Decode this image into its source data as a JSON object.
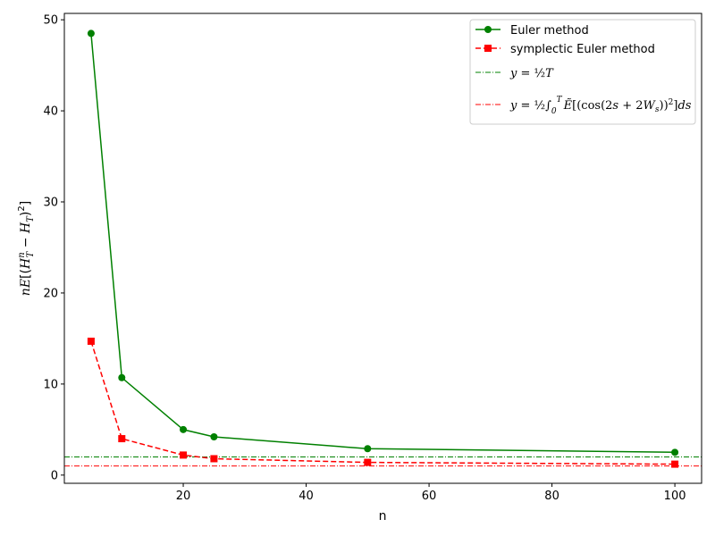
{
  "chart_data": {
    "type": "line",
    "xlabel": "n",
    "ylabel": "nE[(H_T^n − H_T)^2]",
    "xlim": [
      0.65,
      104.35
    ],
    "ylim": [
      -0.9,
      50.7
    ],
    "xticks": [
      20,
      40,
      60,
      80,
      100
    ],
    "xtick_labels": [
      "20",
      "40",
      "60",
      "80",
      "100"
    ],
    "yticks": [
      0,
      10,
      20,
      30,
      40,
      50
    ],
    "ytick_labels": [
      "0",
      "10",
      "20",
      "30",
      "40",
      "50"
    ],
    "grid": false,
    "legend_position": "top-right",
    "x": [
      5,
      10,
      20,
      25,
      50,
      100
    ],
    "series": [
      {
        "name": "Euler method",
        "values": [
          48.5,
          10.7,
          5.0,
          4.2,
          2.9,
          2.5
        ],
        "color": "#008000",
        "linestyle": "solid",
        "marker": "circle"
      },
      {
        "name": "symplectic Euler method",
        "values": [
          14.7,
          4.0,
          2.2,
          1.8,
          1.4,
          1.2
        ],
        "color": "#ff0000",
        "linestyle": "dashed",
        "marker": "square"
      }
    ],
    "reference_lines": [
      {
        "name": "y = ½T",
        "y": 2.0,
        "color": "#008000",
        "linestyle": "dashdot"
      },
      {
        "name": "y = ½∫₀ᵀ Ẽ[(cos(2s + 2Wₛ))²]ds",
        "y": 1.0,
        "color": "#ff0000",
        "linestyle": "dashdot"
      }
    ]
  }
}
